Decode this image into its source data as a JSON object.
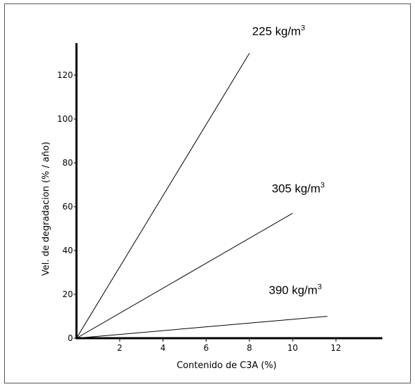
{
  "chart_data": {
    "type": "line",
    "xlabel": "Contenido de C3A (%)",
    "ylabel": "Vel. de degradacion  (% / año)",
    "xlim": [
      0,
      14
    ],
    "ylim": [
      0,
      135
    ],
    "x_ticks": [
      2,
      4,
      6,
      8,
      10,
      12
    ],
    "y_ticks": [
      0,
      20,
      40,
      60,
      80,
      100,
      120
    ],
    "grid": false,
    "series": [
      {
        "name": "225 kg/m3",
        "label_text": "225 kg/m",
        "label_sup": "3",
        "points": [
          [
            0,
            0
          ],
          [
            8,
            130
          ]
        ]
      },
      {
        "name": "305 kg/m3",
        "label_text": "305  kg/m",
        "label_sup": "3",
        "points": [
          [
            0,
            0
          ],
          [
            10,
            57
          ]
        ]
      },
      {
        "name": "390 kg/m3",
        "label_text": "390  kg/m",
        "label_sup": "3",
        "points": [
          [
            0,
            0
          ],
          [
            11.6,
            10
          ]
        ]
      }
    ]
  }
}
